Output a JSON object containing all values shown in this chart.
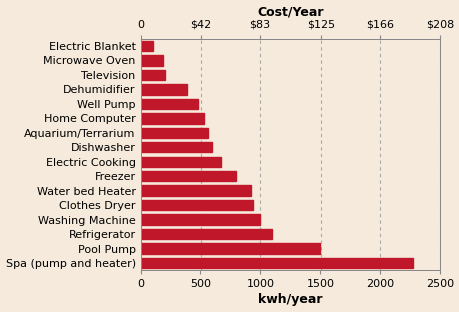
{
  "categories": [
    "Electric Blanket",
    "Microwave Oven",
    "Television",
    "Dehumidifier",
    "Well Pump",
    "Home Computer",
    "Aquarium/Terrarium",
    "Dishwasher",
    "Electric Cooking",
    "Freezer",
    "Water bed Heater",
    "Clothes Dryer",
    "Washing Machine",
    "Refrigerator",
    "Pool Pump",
    "Spa (pump and heater)"
  ],
  "values": [
    100,
    190,
    200,
    390,
    480,
    530,
    560,
    600,
    670,
    800,
    920,
    940,
    1000,
    1100,
    1500,
    2270
  ],
  "bar_color": "#c0182a",
  "background_color": "#f5eadb",
  "title_top": "Cost/Year",
  "title_bottom": "kwh/year",
  "top_ticks": [
    0,
    42,
    83,
    125,
    166,
    208
  ],
  "bottom_ticks": [
    0,
    500,
    1000,
    1500,
    2000,
    2500
  ],
  "xlim": [
    0,
    2500
  ],
  "tick_fontsize": 8,
  "label_fontsize": 8,
  "category_fontsize": 8,
  "title_fontsize": 9,
  "bar_height": 0.72,
  "cost_per_kwh_scale": 0.0832
}
